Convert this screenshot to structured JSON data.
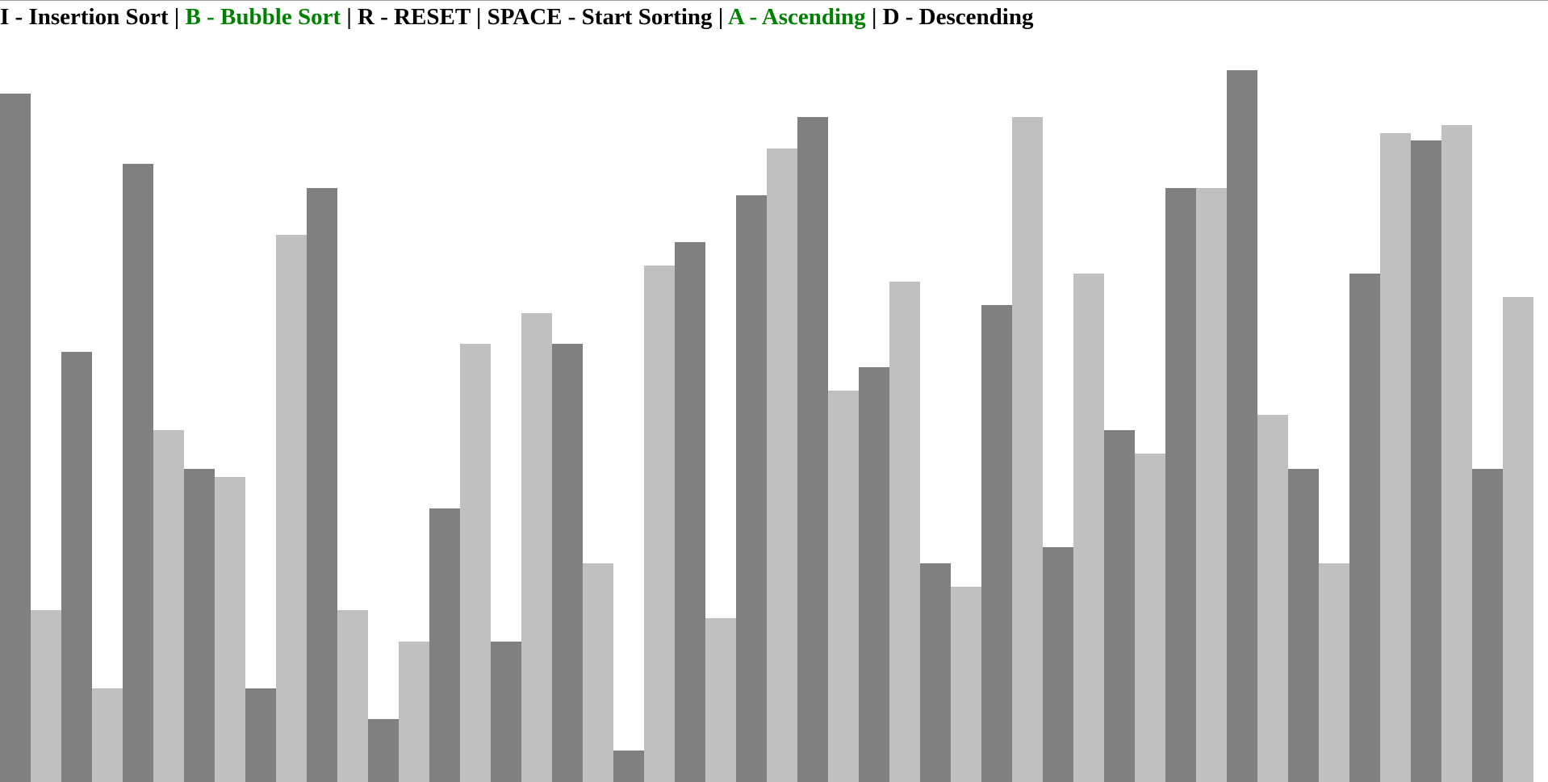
{
  "controls": {
    "items": [
      {
        "text": "I - Insertion Sort",
        "selected": false
      },
      {
        "text": "B - Bubble Sort",
        "selected": true
      },
      {
        "text": "R - RESET",
        "selected": false
      },
      {
        "text": "SPACE - Start Sorting",
        "selected": false
      },
      {
        "text": "A - Ascending",
        "selected": true
      },
      {
        "text": "D - Descending",
        "selected": false
      }
    ],
    "separator": " | ",
    "default_color": "#000000",
    "selected_color": "#008000"
  },
  "bars": {
    "dark_color": "#808080",
    "light_color": "#c0c0c0",
    "max_value": 100,
    "values": [
      88,
      22,
      55,
      12,
      79,
      45,
      40,
      39,
      12,
      70,
      76,
      22,
      8,
      18,
      35,
      56,
      18,
      60,
      56,
      28,
      4,
      66,
      69,
      21,
      75,
      81,
      85,
      50,
      53,
      64,
      28,
      25,
      61,
      85,
      30,
      65,
      45,
      42,
      76,
      76,
      91,
      47,
      40,
      28,
      65,
      83,
      82,
      84,
      40,
      62
    ]
  }
}
